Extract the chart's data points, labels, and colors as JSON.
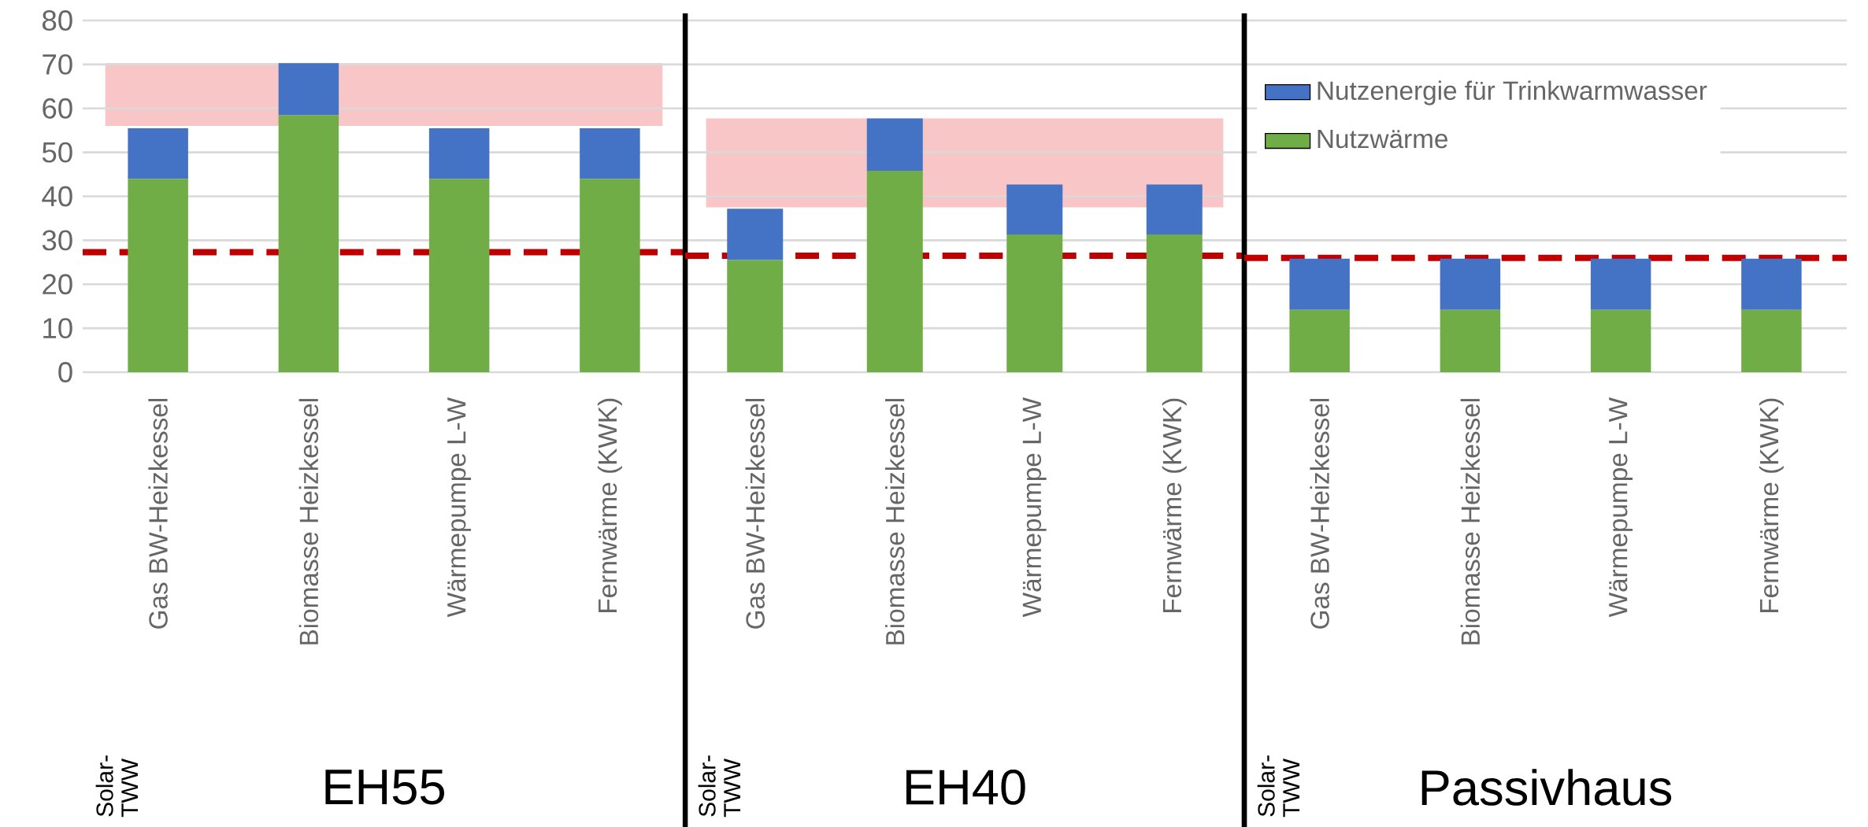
{
  "chart_data": [
    {
      "type": "bar",
      "stacked": true,
      "xlabel": "EH55",
      "categories": [
        "Gas BW-Heizkessel",
        "Biomasse Heizkessel",
        "Wärmepumpe L-W",
        "Fernwärme (KWK)"
      ],
      "series": [
        {
          "color": "#70ad47",
          "values": [
            44,
            58.5,
            44,
            44
          ]
        },
        {
          "color": "#4472c4",
          "values": [
            11.5,
            11.8,
            11.5,
            11.5
          ]
        }
      ],
      "ylim": [
        0,
        80
      ],
      "yticks": [
        0,
        10,
        20,
        30,
        40,
        50,
        60,
        70,
        80
      ],
      "grid": "y",
      "bands": [
        {
          "axis": "y",
          "from": 56,
          "to": 70.3,
          "color": "#f8c6c6"
        }
      ],
      "ref_lines": [
        {
          "axis": "y",
          "value": 27.3,
          "color": "#c00000",
          "line_style": "dashed"
        }
      ],
      "annotations": [
        "Solar-TWW"
      ]
    },
    {
      "type": "bar",
      "stacked": true,
      "xlabel": "EH40",
      "categories": [
        "Gas BW-Heizkessel",
        "Biomasse Heizkessel",
        "Wärmepumpe L-W",
        "Fernwärme (KWK)"
      ],
      "series": [
        {
          "color": "#70ad47",
          "values": [
            25.5,
            45.8,
            31.3,
            31.3
          ]
        },
        {
          "color": "#4472c4",
          "values": [
            11.7,
            11.9,
            11.4,
            11.4
          ]
        }
      ],
      "ylim": [
        0,
        80
      ],
      "yticks": [
        0,
        10,
        20,
        30,
        40,
        50,
        60,
        70,
        80
      ],
      "grid": "y",
      "tick_labels": "x",
      "bands": [
        {
          "axis": "y",
          "from": 37.5,
          "to": 57.7,
          "color": "#f8c6c6"
        }
      ],
      "ref_lines": [
        {
          "axis": "y",
          "value": 26.5,
          "color": "#c00000",
          "line_style": "dashed"
        }
      ],
      "annotations": [
        "Solar-TWW"
      ]
    },
    {
      "type": "bar",
      "stacked": true,
      "xlabel": "Passivhaus",
      "categories": [
        "Gas BW-Heizkessel",
        "Biomasse Heizkessel",
        "Wärmepumpe L-W",
        "Fernwärme (KWK)"
      ],
      "series": [
        {
          "name": "Nutzwärme",
          "color": "#70ad47",
          "values": [
            14.2,
            14.2,
            14.2,
            14.2
          ]
        },
        {
          "name": "Nutzenergie für Trinkwarmwasser",
          "color": "#4472c4",
          "values": [
            11.6,
            11.6,
            11.6,
            11.6
          ]
        }
      ],
      "ylim": [
        0,
        80
      ],
      "yticks": [
        0,
        10,
        20,
        30,
        40,
        50,
        60,
        70,
        80
      ],
      "grid": "y",
      "tick_labels": "x",
      "legend": "top left",
      "ref_lines": [
        {
          "axis": "y",
          "value": 26,
          "color": "#c00000",
          "line_style": "dashed"
        }
      ],
      "annotations": [
        "Solar-TWW"
      ]
    }
  ]
}
